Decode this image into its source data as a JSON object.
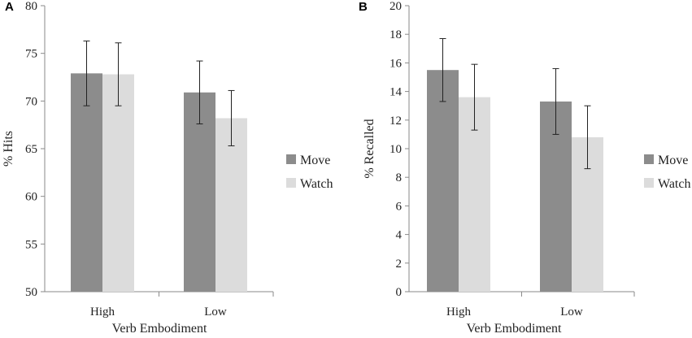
{
  "chart_data": [
    {
      "panel": "A",
      "type": "bar",
      "categories": [
        "High",
        "Low"
      ],
      "series": [
        {
          "name": "Move",
          "values": [
            72.9,
            70.9
          ],
          "errors": [
            3.4,
            3.3
          ]
        },
        {
          "name": "Watch",
          "values": [
            72.8,
            68.2
          ],
          "errors": [
            3.3,
            2.9
          ]
        }
      ],
      "xlabel": "Verb Embodiment",
      "ylabel": "% Hits",
      "ylim": [
        50,
        80
      ],
      "yticks": [
        50,
        55,
        60,
        65,
        70,
        75,
        80
      ],
      "legend": "right",
      "grid": false
    },
    {
      "panel": "B",
      "type": "bar",
      "categories": [
        "High",
        "Low"
      ],
      "series": [
        {
          "name": "Move",
          "values": [
            15.5,
            13.3
          ],
          "errors": [
            2.2,
            2.3
          ]
        },
        {
          "name": "Watch",
          "values": [
            13.6,
            10.8
          ],
          "errors": [
            2.3,
            2.2
          ]
        }
      ],
      "xlabel": "Verb Embodiment",
      "ylabel": "% Recalled",
      "ylim": [
        0,
        20
      ],
      "yticks": [
        0,
        2,
        4,
        6,
        8,
        10,
        12,
        14,
        16,
        18,
        20
      ],
      "legend": "right",
      "grid": false
    }
  ],
  "colors": {
    "Move": "#8c8c8c",
    "Watch": "#dcdcdc",
    "axis": "#8a8a8a",
    "error": "#222222"
  }
}
